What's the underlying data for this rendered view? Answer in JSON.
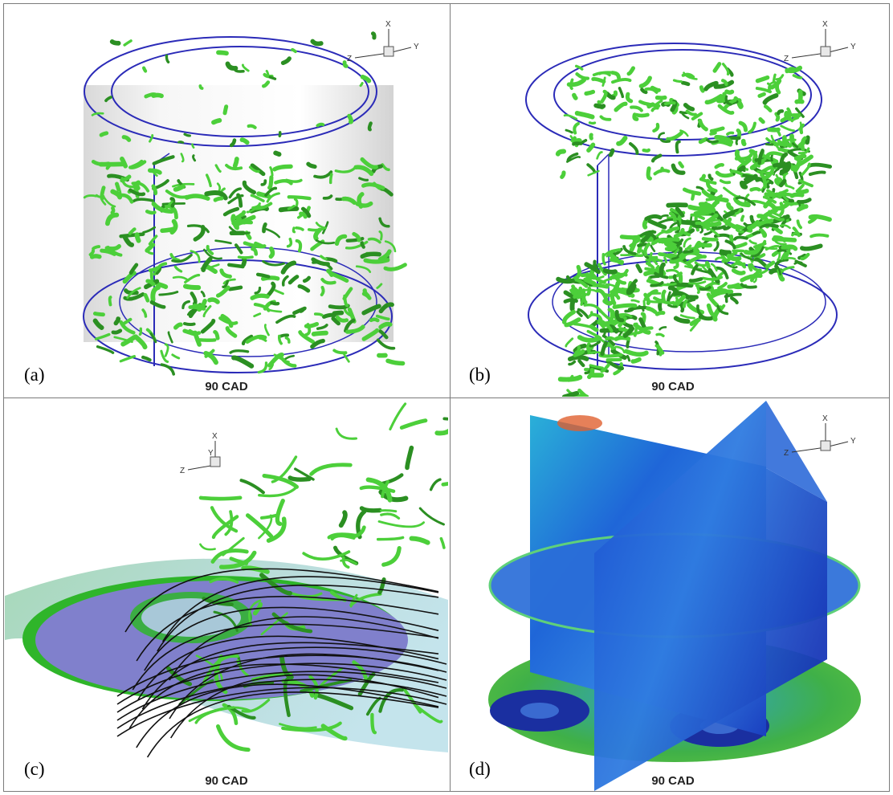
{
  "panels": [
    {
      "id": "a",
      "label": "(a)",
      "caption": "90 CAD"
    },
    {
      "id": "b",
      "label": "(b)",
      "caption": "90 CAD"
    },
    {
      "id": "c",
      "label": "(c)",
      "caption": "90 CAD"
    },
    {
      "id": "d",
      "label": "(d)",
      "caption": "90 CAD"
    }
  ],
  "axes_labels": {
    "x": "X",
    "y": "Y",
    "z": "Z"
  },
  "colors": {
    "outline": "#2b2bb8",
    "vortex_green": "#4ccf3a",
    "vortex_dark": "#2b8f22",
    "cylinder_grey": "#d9d9d9",
    "disk_violet": "#8080d0",
    "field_blue": "#1a3fd0"
  }
}
